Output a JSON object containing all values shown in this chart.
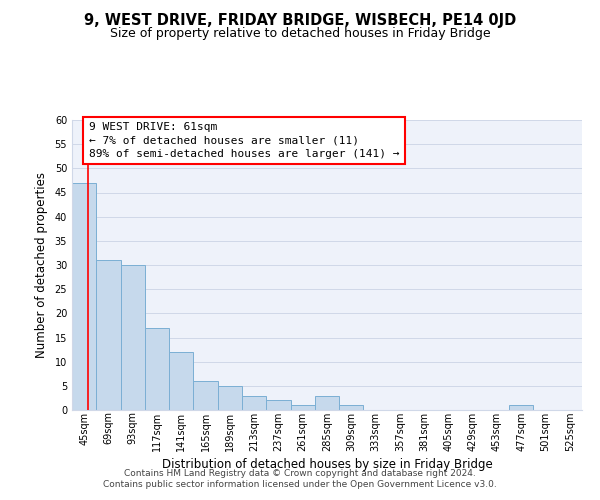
{
  "title": "9, WEST DRIVE, FRIDAY BRIDGE, WISBECH, PE14 0JD",
  "subtitle": "Size of property relative to detached houses in Friday Bridge",
  "bar_values": [
    47,
    31,
    30,
    17,
    12,
    6,
    5,
    3,
    2,
    1,
    3,
    1,
    0,
    0,
    0,
    0,
    0,
    0,
    1,
    0,
    0
  ],
  "bin_labels": [
    "45sqm",
    "69sqm",
    "93sqm",
    "117sqm",
    "141sqm",
    "165sqm",
    "189sqm",
    "213sqm",
    "237sqm",
    "261sqm",
    "285sqm",
    "309sqm",
    "333sqm",
    "357sqm",
    "381sqm",
    "405sqm",
    "429sqm",
    "453sqm",
    "477sqm",
    "501sqm",
    "525sqm"
  ],
  "bar_color": "#c6d9ec",
  "bar_edge_color": "#7bafd4",
  "xlabel": "Distribution of detached houses by size in Friday Bridge",
  "ylabel": "Number of detached properties",
  "ylim": [
    0,
    60
  ],
  "yticks": [
    0,
    5,
    10,
    15,
    20,
    25,
    30,
    35,
    40,
    45,
    50,
    55,
    60
  ],
  "annotation_line1": "9 WEST DRIVE: 61sqm",
  "annotation_line2": "← 7% of detached houses are smaller (11)",
  "annotation_line3": "89% of semi-detached houses are larger (141) →",
  "grid_color": "#d0d8e8",
  "footer_line1": "Contains HM Land Registry data © Crown copyright and database right 2024.",
  "footer_line2": "Contains public sector information licensed under the Open Government Licence v3.0.",
  "bg_color": "#eef2fa",
  "title_fontsize": 10.5,
  "subtitle_fontsize": 9,
  "tick_fontsize": 7,
  "label_fontsize": 8.5,
  "footer_fontsize": 6.5,
  "annot_fontsize": 8
}
